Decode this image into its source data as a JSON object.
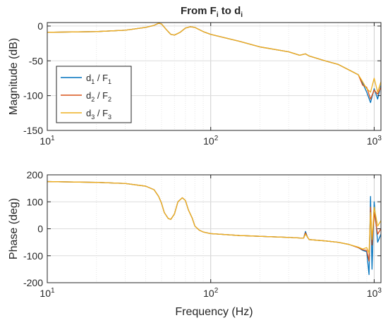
{
  "colors": {
    "series_1": "#0072BD",
    "series_2": "#D95319",
    "series_3": "#EDB120",
    "axis": "#262626",
    "grid": "#dcdcdc",
    "background": "#ffffff"
  },
  "chart_data": [
    {
      "type": "line",
      "title": {
        "main": "From F",
        "sub1": "i",
        "mid": " to d",
        "sub2": "i"
      },
      "xlabel": "",
      "ylabel": "Magnitude (dB)",
      "xscale": "log",
      "xlim": [
        10,
        1100
      ],
      "ylim": [
        -150,
        5
      ],
      "xticks": [
        {
          "value": 10,
          "base": "10",
          "exp": "1"
        },
        {
          "value": 100,
          "base": "10",
          "exp": "2"
        },
        {
          "value": 1000,
          "base": "10",
          "exp": "3"
        }
      ],
      "yticks": [
        {
          "value": 0,
          "label": "0"
        },
        {
          "value": -50,
          "label": "-50"
        },
        {
          "value": -100,
          "label": "-100"
        },
        {
          "value": -150,
          "label": "-150"
        }
      ],
      "grid": true,
      "legend": {
        "placement": "lower-left",
        "entries": [
          {
            "num": "d",
            "num_sub": "1",
            "den": " / F",
            "den_sub": "1"
          },
          {
            "num": "d",
            "num_sub": "2",
            "den": " / F",
            "den_sub": "2"
          },
          {
            "num": "d",
            "num_sub": "3",
            "den": " / F",
            "den_sub": "3"
          }
        ]
      },
      "x": [
        10,
        20,
        30,
        40,
        45,
        48,
        50,
        53,
        57,
        60,
        65,
        70,
        75,
        80,
        90,
        100,
        150,
        200,
        300,
        350,
        380,
        400,
        500,
        600,
        700,
        800,
        850,
        900,
        950,
        1000,
        1050,
        1100
      ],
      "series": [
        {
          "values": [
            -9,
            -8,
            -6,
            -2,
            1,
            4,
            3,
            -4,
            -12,
            -13,
            -9,
            -3,
            -1,
            -2,
            -8,
            -12,
            -22,
            -30,
            -37,
            -42,
            -40,
            -43,
            -50,
            -55,
            -63,
            -70,
            -82,
            -95,
            -110,
            -90,
            -105,
            -85
          ]
        },
        {
          "values": [
            -9,
            -8,
            -6,
            -2,
            1,
            4,
            3,
            -4,
            -12,
            -13,
            -9,
            -3,
            -1,
            -2,
            -8,
            -12,
            -22,
            -30,
            -37,
            -42,
            -40,
            -43,
            -50,
            -55,
            -63,
            -70,
            -85,
            -88,
            -105,
            -92,
            -98,
            -88
          ]
        },
        {
          "values": [
            -9,
            -8,
            -6,
            -2,
            1,
            4,
            3,
            -4,
            -12,
            -13,
            -9,
            -3,
            -1,
            -2,
            -8,
            -12,
            -22,
            -30,
            -37,
            -42,
            -40,
            -43,
            -50,
            -55,
            -63,
            -70,
            -80,
            -90,
            -95,
            -75,
            -95,
            -80
          ]
        }
      ]
    },
    {
      "type": "line",
      "xlabel": "Frequency (Hz)",
      "ylabel": "Phase (deg)",
      "xscale": "log",
      "xlim": [
        10,
        1100
      ],
      "ylim": [
        -200,
        200
      ],
      "xticks": [
        {
          "value": 10,
          "base": "10",
          "exp": "1"
        },
        {
          "value": 100,
          "base": "10",
          "exp": "2"
        },
        {
          "value": 1000,
          "base": "10",
          "exp": "3"
        }
      ],
      "yticks": [
        {
          "value": 200,
          "label": "200"
        },
        {
          "value": 100,
          "label": "100"
        },
        {
          "value": 0,
          "label": "0"
        },
        {
          "value": -100,
          "label": "-100"
        },
        {
          "value": -200,
          "label": "-200"
        }
      ],
      "grid": true,
      "x": [
        10,
        20,
        30,
        40,
        45,
        48,
        50,
        52,
        55,
        57,
        60,
        63,
        67,
        70,
        73,
        77,
        80,
        85,
        90,
        100,
        150,
        200,
        300,
        370,
        380,
        390,
        400,
        500,
        600,
        700,
        800,
        850,
        900,
        930,
        950,
        970,
        1000,
        1050,
        1100
      ],
      "series": [
        {
          "values": [
            175,
            172,
            168,
            158,
            145,
            120,
            95,
            60,
            38,
            35,
            55,
            100,
            115,
            105,
            70,
            40,
            10,
            -5,
            -12,
            -18,
            -25,
            -28,
            -32,
            -35,
            -10,
            -30,
            -40,
            -45,
            -50,
            -58,
            -70,
            -80,
            -85,
            -170,
            120,
            -150,
            100,
            -50,
            -20
          ]
        },
        {
          "values": [
            175,
            172,
            168,
            158,
            145,
            120,
            95,
            60,
            38,
            35,
            55,
            100,
            115,
            105,
            70,
            40,
            10,
            -5,
            -12,
            -18,
            -25,
            -28,
            -32,
            -35,
            -15,
            -30,
            -40,
            -45,
            -50,
            -58,
            -70,
            -78,
            -80,
            -120,
            80,
            -60,
            60,
            -20,
            0
          ]
        },
        {
          "values": [
            175,
            172,
            168,
            158,
            145,
            120,
            95,
            60,
            38,
            35,
            55,
            100,
            115,
            105,
            70,
            40,
            10,
            -5,
            -12,
            -18,
            -25,
            -28,
            -32,
            -35,
            -20,
            -30,
            -40,
            -45,
            -50,
            -58,
            -68,
            -75,
            -70,
            -90,
            60,
            -40,
            80,
            10,
            30
          ]
        }
      ]
    }
  ]
}
